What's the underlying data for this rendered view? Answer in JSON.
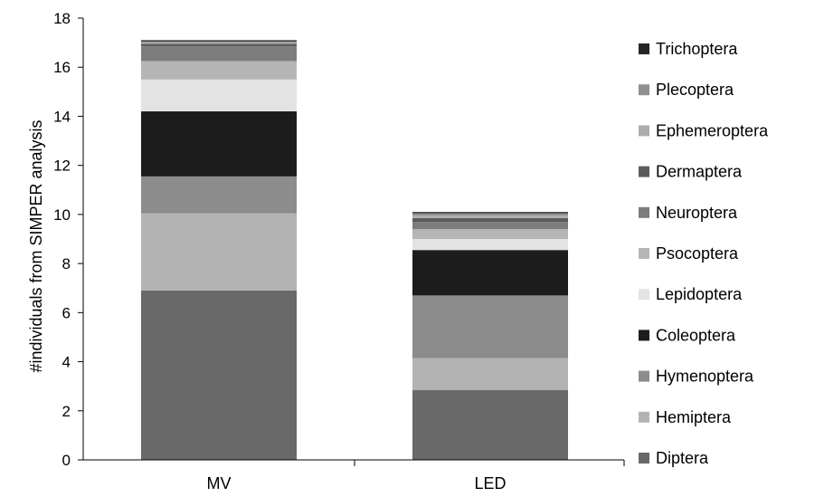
{
  "chart_data": {
    "type": "bar",
    "stacked": true,
    "categories": [
      "MV",
      "LED"
    ],
    "ylabel": "#individuals from SIMPER analysis",
    "xlabel": "",
    "ylim": [
      0,
      18
    ],
    "yticks": [
      0,
      2,
      4,
      6,
      8,
      10,
      12,
      14,
      16,
      18
    ],
    "grid": false,
    "legend_position": "right",
    "series": [
      {
        "name": "Diptera",
        "color": "#696969",
        "values": [
          6.9,
          2.85
        ]
      },
      {
        "name": "Hemiptera",
        "color": "#b3b3b3",
        "values": [
          3.15,
          1.3
        ]
      },
      {
        "name": "Hymenoptera",
        "color": "#8c8c8c",
        "values": [
          1.5,
          2.55
        ]
      },
      {
        "name": "Coleoptera",
        "color": "#1c1c1c",
        "values": [
          2.65,
          1.85
        ]
      },
      {
        "name": "Lepidoptera",
        "color": "#e3e3e3",
        "values": [
          1.3,
          0.45
        ]
      },
      {
        "name": "Psocoptera",
        "color": "#b5b5b5",
        "values": [
          0.75,
          0.4
        ]
      },
      {
        "name": "Neuroptera",
        "color": "#7d7d7d",
        "values": [
          0.6,
          0.3
        ]
      },
      {
        "name": "Dermaptera",
        "color": "#5c5c5c",
        "values": [
          0.1,
          0.15
        ]
      },
      {
        "name": "Ephemeroptera",
        "color": "#adadad",
        "values": [
          0.05,
          0.1
        ]
      },
      {
        "name": "Plecoptera",
        "color": "#909090",
        "values": [
          0.05,
          0.1
        ]
      },
      {
        "name": "Trichoptera",
        "color": "#262626",
        "values": [
          0.05,
          0.05
        ]
      }
    ]
  }
}
